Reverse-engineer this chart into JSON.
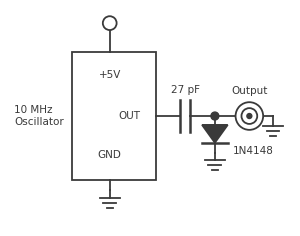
{
  "bg_color": "#ffffff",
  "line_color": "#3a3a3a",
  "text_color": "#3a3a3a",
  "labels": {
    "oscillator": "10 MHz\nOscillator",
    "plus5v": "+5V",
    "out": "OUT",
    "gnd_label": "GND",
    "cap_label": "27 pF",
    "output_label": "Output",
    "diode_label": "1N4148"
  },
  "font_size": 7.5
}
